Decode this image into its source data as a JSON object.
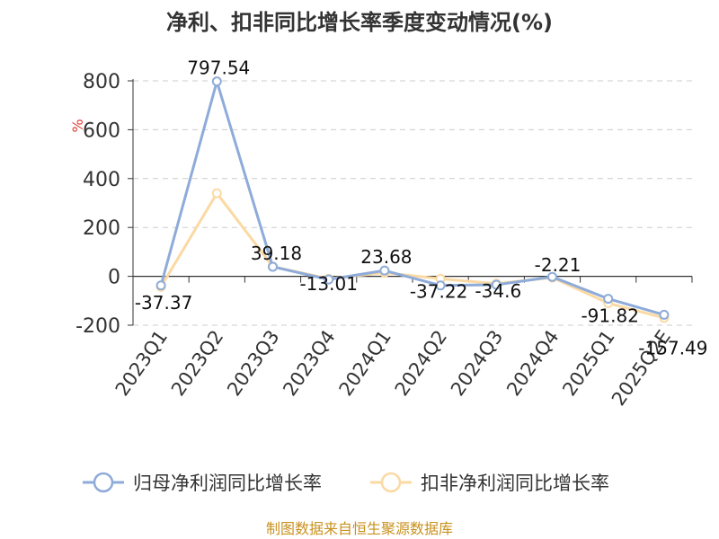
{
  "chart_data": {
    "type": "line",
    "title": "净利、扣非同比增长率季度变动情况(%)",
    "ylabel": "%",
    "ylim": [
      -200,
      800
    ],
    "yticks": [
      800,
      600,
      400,
      200,
      0,
      -200
    ],
    "grid": true,
    "legend_position": "bottom",
    "categories": [
      "2023Q1",
      "2023Q2",
      "2023Q3",
      "2023Q4",
      "2024Q1",
      "2024Q2",
      "2024Q3",
      "2024Q4",
      "2025Q1",
      "2025Q2E"
    ],
    "series": [
      {
        "name": "归母净利润同比增长率",
        "color": "#8eabd9",
        "values": [
          -37.37,
          797.54,
          39.18,
          -13.01,
          23.68,
          -37.22,
          -34.6,
          -2.21,
          -91.82,
          -157.49
        ],
        "labels": [
          "-37.37",
          "797.54",
          "39.18",
          "-13.01",
          "23.68",
          "-37.22",
          "-34.6",
          "-2.21",
          "-91.82",
          "-157.49"
        ]
      },
      {
        "name": "扣非净利润同比增长率",
        "color": "#fbd9a3",
        "values": [
          -43,
          340,
          40,
          -10,
          15,
          -10,
          -30,
          -5,
          -110,
          -170
        ]
      }
    ],
    "source": "制图数据来自恒生聚源数据库",
    "source_color": "#c8911e",
    "unit_color": "#e0403a"
  }
}
